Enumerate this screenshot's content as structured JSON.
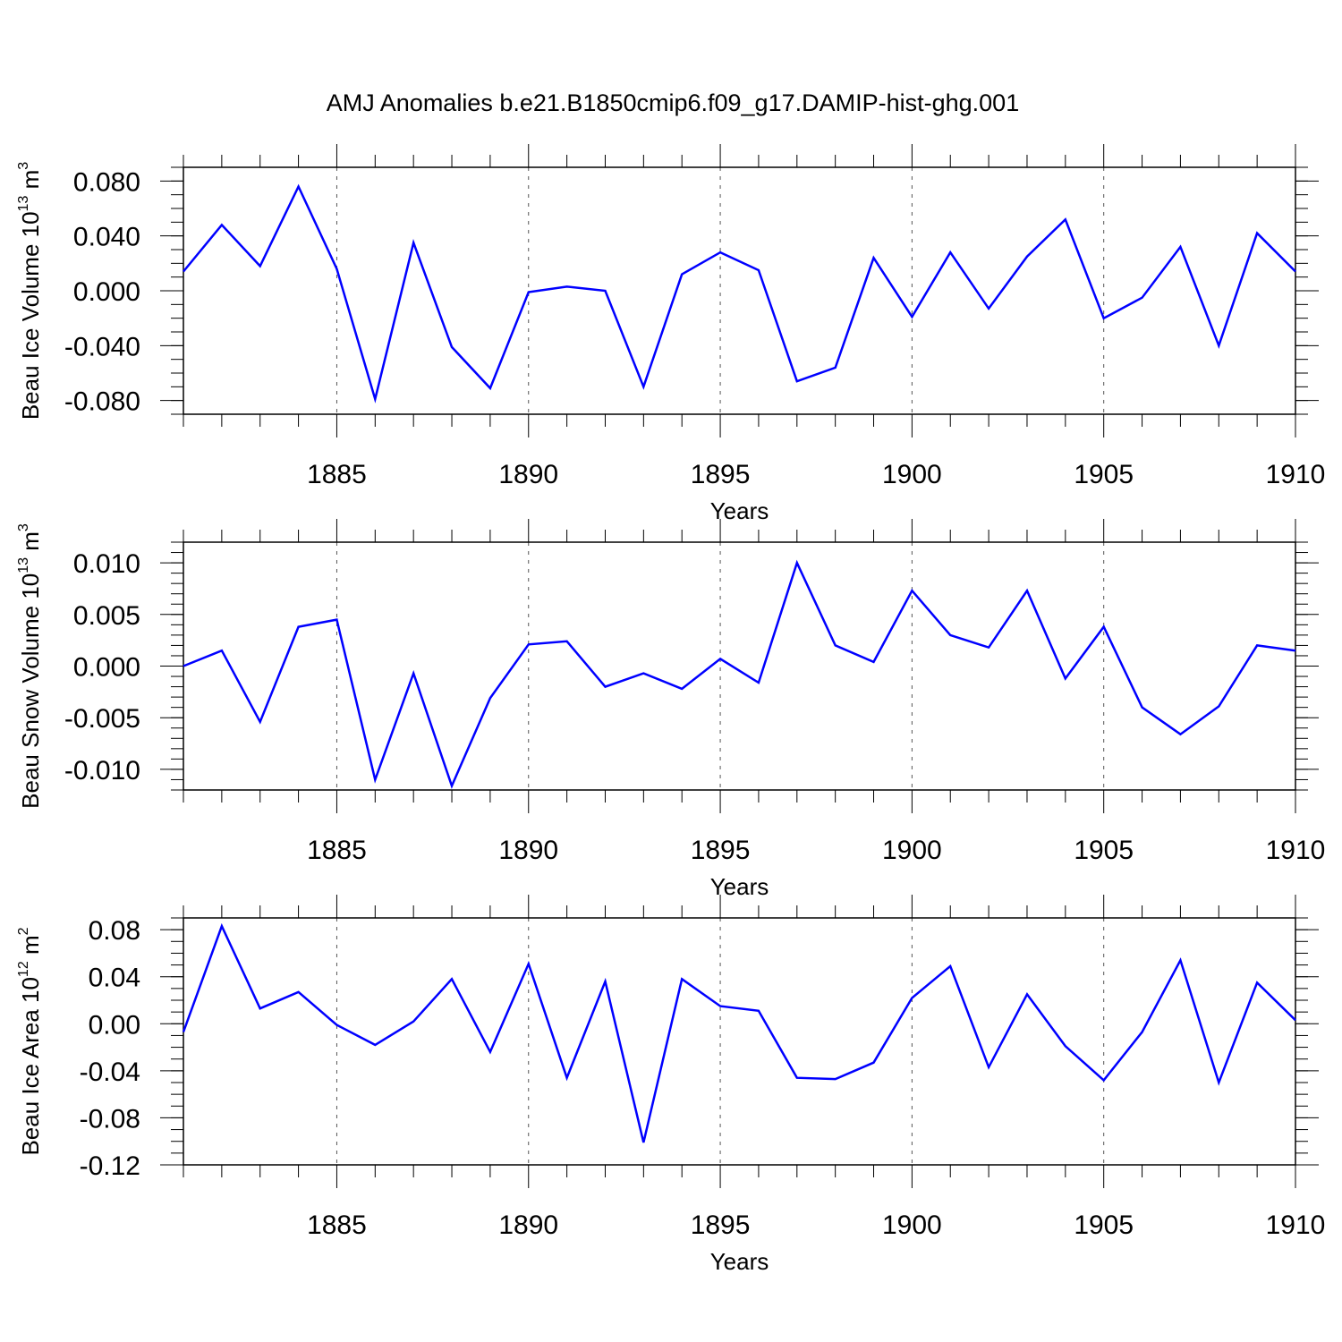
{
  "title": "AMJ Anomalies b.e21.B1850cmip6.f09_g17.DAMIP-hist-ghg.001",
  "line_color": "#0000ff",
  "chart_data": [
    {
      "type": "line",
      "xlabel": "Years",
      "ylabel_text": "Beau Ice Volume 10",
      "ylabel_exponent": "13",
      "ylabel_unit": " m",
      "ylabel_unit_exponent": "3",
      "xlim": [
        1881,
        1910
      ],
      "ylim": [
        -0.09,
        0.09
      ],
      "yticks": [
        0.08,
        0.04,
        0.0,
        -0.04,
        -0.08
      ],
      "ytick_labels": [
        "0.080",
        "0.040",
        "0.000",
        "-0.040",
        "-0.080"
      ],
      "y_minor_step": 0.01,
      "xticks": [
        1885,
        1890,
        1895,
        1900,
        1905,
        1910
      ],
      "xtick_labels": [
        "1885",
        "1890",
        "1895",
        "1900",
        "1905",
        "1910"
      ],
      "grid": "vertical dashed at major x ticks",
      "x": [
        1881,
        1882,
        1883,
        1884,
        1885,
        1886,
        1887,
        1888,
        1889,
        1890,
        1891,
        1892,
        1893,
        1894,
        1895,
        1896,
        1897,
        1898,
        1899,
        1900,
        1901,
        1902,
        1903,
        1904,
        1905,
        1906,
        1907,
        1908,
        1909,
        1910
      ],
      "values": [
        0.014,
        0.048,
        0.018,
        0.076,
        0.016,
        -0.079,
        0.035,
        -0.041,
        -0.071,
        -0.001,
        0.003,
        0.0,
        -0.07,
        0.012,
        0.028,
        0.015,
        -0.066,
        -0.056,
        0.024,
        -0.019,
        0.028,
        -0.013,
        0.025,
        0.052,
        -0.02,
        -0.005,
        0.032,
        -0.04,
        0.042,
        0.014
      ]
    },
    {
      "type": "line",
      "xlabel": "Years",
      "ylabel_text": "Beau Snow Volume 10",
      "ylabel_exponent": "13",
      "ylabel_unit": " m",
      "ylabel_unit_exponent": "3",
      "xlim": [
        1881,
        1910
      ],
      "ylim": [
        -0.012,
        0.012
      ],
      "yticks": [
        0.01,
        0.005,
        0.0,
        -0.005,
        -0.01
      ],
      "ytick_labels": [
        "0.010",
        "0.005",
        "0.000",
        "-0.005",
        "-0.010"
      ],
      "y_minor_step": 0.001,
      "xticks": [
        1885,
        1890,
        1895,
        1900,
        1905,
        1910
      ],
      "xtick_labels": [
        "1885",
        "1890",
        "1895",
        "1900",
        "1905",
        "1910"
      ],
      "grid": "vertical dashed at major x ticks",
      "x": [
        1881,
        1882,
        1883,
        1884,
        1885,
        1886,
        1887,
        1888,
        1889,
        1890,
        1891,
        1892,
        1893,
        1894,
        1895,
        1896,
        1897,
        1898,
        1899,
        1900,
        1901,
        1902,
        1903,
        1904,
        1905,
        1906,
        1907,
        1908,
        1909,
        1910
      ],
      "values": [
        0.0,
        0.0015,
        -0.0054,
        0.0038,
        0.0045,
        -0.011,
        -0.0007,
        -0.0116,
        -0.0031,
        0.0021,
        0.0024,
        -0.002,
        -0.0007,
        -0.0022,
        0.0007,
        -0.0016,
        0.01,
        0.002,
        0.0004,
        0.0073,
        0.003,
        0.0018,
        0.0073,
        -0.0012,
        0.0038,
        -0.004,
        -0.0066,
        -0.0039,
        0.002,
        0.0015
      ]
    },
    {
      "type": "line",
      "xlabel": "Years",
      "ylabel_text": "Beau Ice Area 10",
      "ylabel_exponent": "12",
      "ylabel_unit": " m",
      "ylabel_unit_exponent": "2",
      "xlim": [
        1881,
        1910
      ],
      "ylim": [
        -0.12,
        0.09
      ],
      "yticks": [
        0.08,
        0.04,
        0.0,
        -0.04,
        -0.08,
        -0.12
      ],
      "ytick_labels": [
        "0.08",
        "0.04",
        "0.00",
        "-0.04",
        "-0.08",
        "-0.12"
      ],
      "y_minor_step": 0.01,
      "xticks": [
        1885,
        1890,
        1895,
        1900,
        1905,
        1910
      ],
      "xtick_labels": [
        "1885",
        "1890",
        "1895",
        "1900",
        "1905",
        "1910"
      ],
      "grid": "vertical dashed at major x ticks",
      "x": [
        1881,
        1882,
        1883,
        1884,
        1885,
        1886,
        1887,
        1888,
        1889,
        1890,
        1891,
        1892,
        1893,
        1894,
        1895,
        1896,
        1897,
        1898,
        1899,
        1900,
        1901,
        1902,
        1903,
        1904,
        1905,
        1906,
        1907,
        1908,
        1909,
        1910
      ],
      "values": [
        -0.007,
        0.083,
        0.013,
        0.027,
        -0.001,
        -0.018,
        0.002,
        0.038,
        -0.024,
        0.051,
        -0.046,
        0.036,
        -0.101,
        0.038,
        0.015,
        0.011,
        -0.046,
        -0.047,
        -0.033,
        0.022,
        0.049,
        -0.037,
        0.025,
        -0.019,
        -0.048,
        -0.007,
        0.054,
        -0.05,
        0.035,
        0.003
      ]
    }
  ]
}
